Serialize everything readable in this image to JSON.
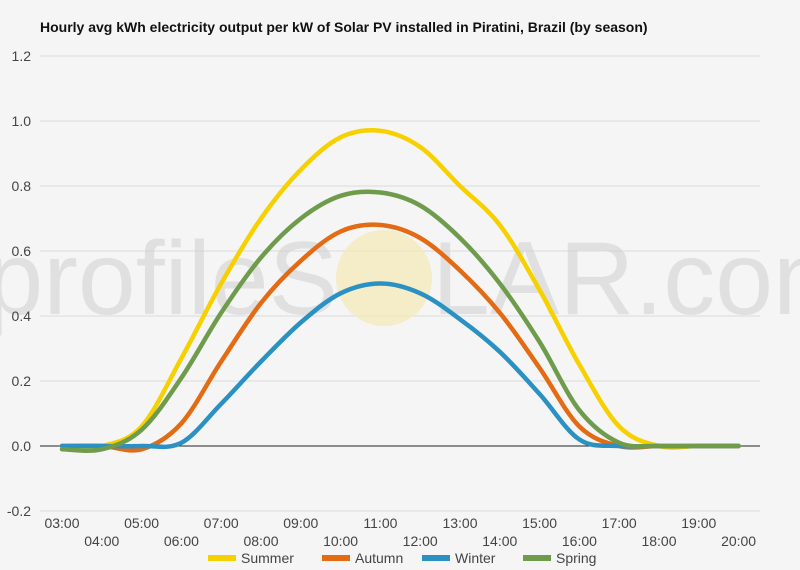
{
  "chart_data": {
    "type": "line",
    "title": "Hourly avg kWh electricity output per kW of Solar PV installed in Piratini, Brazil (by season)",
    "xlabel": "",
    "ylabel": "",
    "x": [
      "03:00",
      "04:00",
      "05:00",
      "06:00",
      "07:00",
      "08:00",
      "09:00",
      "10:00",
      "11:00",
      "12:00",
      "13:00",
      "14:00",
      "15:00",
      "16:00",
      "17:00",
      "18:00",
      "19:00",
      "20:00"
    ],
    "ylim": [
      -0.2,
      1.2
    ],
    "yticks": [
      "1.2",
      "1.0",
      "0.8",
      "0.6",
      "0.4",
      "0.2",
      "0.0",
      "-0.2"
    ],
    "ytick_values": [
      1.2,
      1.0,
      0.8,
      0.6,
      0.4,
      0.2,
      0.0,
      -0.2
    ],
    "grid": true,
    "legend_position": "bottom",
    "series": [
      {
        "name": "Summer",
        "color": "#f7d000",
        "values": [
          0,
          0,
          0.06,
          0.27,
          0.5,
          0.7,
          0.85,
          0.95,
          0.97,
          0.92,
          0.8,
          0.68,
          0.48,
          0.25,
          0.06,
          0,
          0,
          0
        ]
      },
      {
        "name": "Autumn",
        "color": "#e36b14",
        "values": [
          0,
          0,
          -0.01,
          0.07,
          0.26,
          0.44,
          0.57,
          0.66,
          0.68,
          0.64,
          0.54,
          0.41,
          0.24,
          0.06,
          0,
          0,
          0,
          0
        ]
      },
      {
        "name": "Winter",
        "color": "#2b90c2",
        "values": [
          0,
          0,
          0,
          0.01,
          0.13,
          0.26,
          0.38,
          0.47,
          0.5,
          0.47,
          0.39,
          0.29,
          0.16,
          0.02,
          0,
          0,
          0,
          0
        ]
      },
      {
        "name": "Spring",
        "color": "#6e9c4c",
        "values": [
          -0.01,
          -0.01,
          0.05,
          0.21,
          0.41,
          0.58,
          0.7,
          0.77,
          0.78,
          0.74,
          0.64,
          0.5,
          0.32,
          0.11,
          0.01,
          0,
          0,
          0
        ]
      }
    ]
  },
  "watermark": {
    "text_left": "profileS",
    "text_right": "LAR.com"
  }
}
